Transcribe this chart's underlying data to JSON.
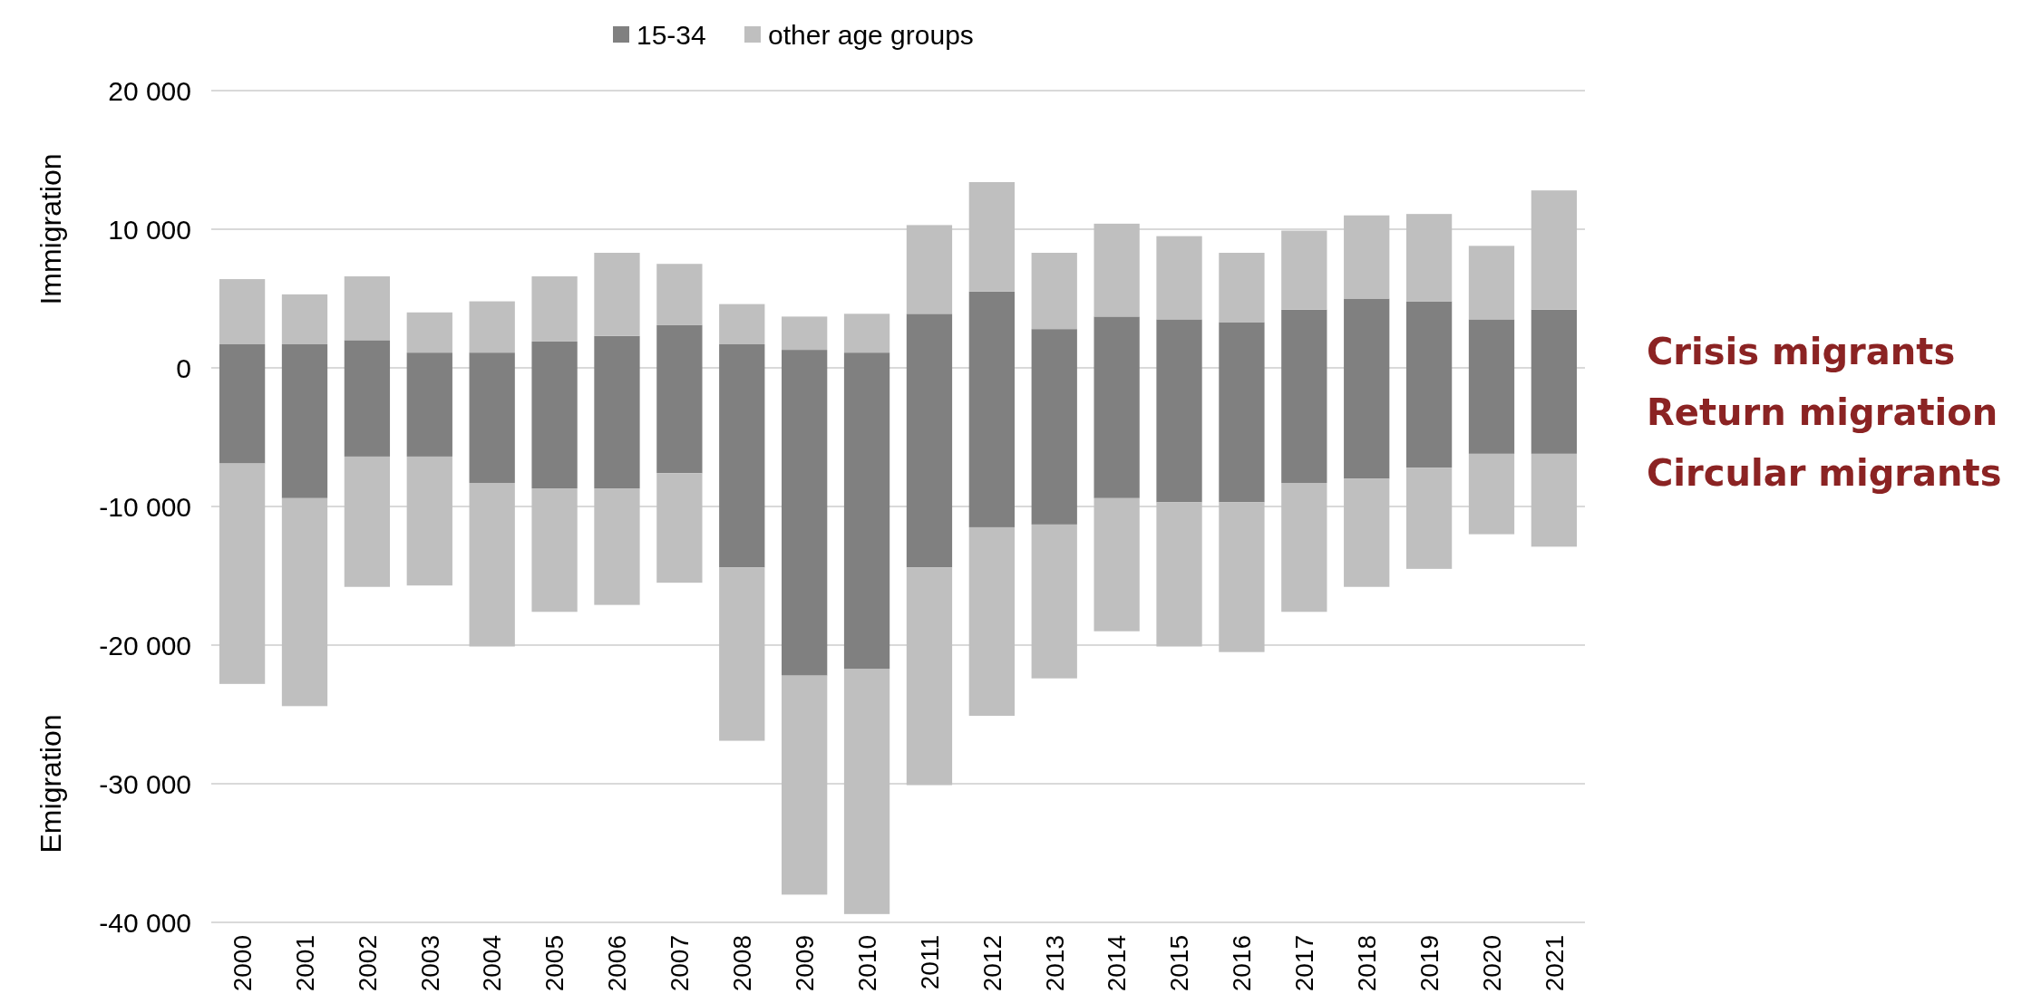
{
  "chart_data": {
    "type": "bar",
    "stacked": true,
    "categories": [
      "2000",
      "2001",
      "2002",
      "2003",
      "2004",
      "2005",
      "2006",
      "2007",
      "2008",
      "2009",
      "2010",
      "2011",
      "2012",
      "2013",
      "2014",
      "2015",
      "2016",
      "2017",
      "2018",
      "2019",
      "2020",
      "2021"
    ],
    "series": [
      {
        "name": "15-34",
        "color": "#808080",
        "values": [
          1700,
          1700,
          2000,
          1100,
          1100,
          1900,
          2300,
          3100,
          1700,
          1300,
          1100,
          3900,
          5500,
          2800,
          3700,
          3500,
          3300,
          4200,
          5000,
          4800,
          3500,
          4200
        ]
      },
      {
        "name": "other age groups",
        "color": "#bfbfbf",
        "values": [
          4700,
          3600,
          4600,
          2900,
          3700,
          4700,
          6000,
          4400,
          2900,
          2400,
          2800,
          6400,
          7900,
          5500,
          6700,
          6000,
          5000,
          5700,
          6000,
          6300,
          5300,
          8600
        ]
      },
      {
        "color": "#808080",
        "values": [
          -6900,
          -9400,
          -6400,
          -6400,
          -8300,
          -8700,
          -8700,
          -7600,
          -14400,
          -22200,
          -21700,
          -14400,
          -11500,
          -11300,
          -9400,
          -9700,
          -9700,
          -8300,
          -8000,
          -7200,
          -6200,
          -6200
        ]
      },
      {
        "color": "#bfbfbf",
        "values": [
          -15900,
          -15000,
          -9400,
          -9300,
          -11800,
          -8900,
          -8400,
          -7900,
          -12500,
          -15800,
          -17700,
          -15700,
          -13600,
          -11100,
          -9600,
          -10400,
          -10800,
          -9300,
          -7800,
          -7300,
          -5800,
          -6700
        ]
      }
    ],
    "ylim": [
      -40000,
      20000
    ],
    "yticks": [
      {
        "value": -40000,
        "label": "-40 000"
      },
      {
        "value": -30000,
        "label": "-30 000"
      },
      {
        "value": -20000,
        "label": "-20 000"
      },
      {
        "value": -10000,
        "label": "-10 000"
      },
      0,
      {
        "value": 10000,
        "label": "10 000"
      },
      {
        "value": 20000,
        "label": "20 000"
      }
    ],
    "grid": "y",
    "legend": "top",
    "annotations": [
      "Immigration",
      "Emigration",
      "Crisis migrants",
      "Return migration",
      "Circular migrants"
    ]
  }
}
